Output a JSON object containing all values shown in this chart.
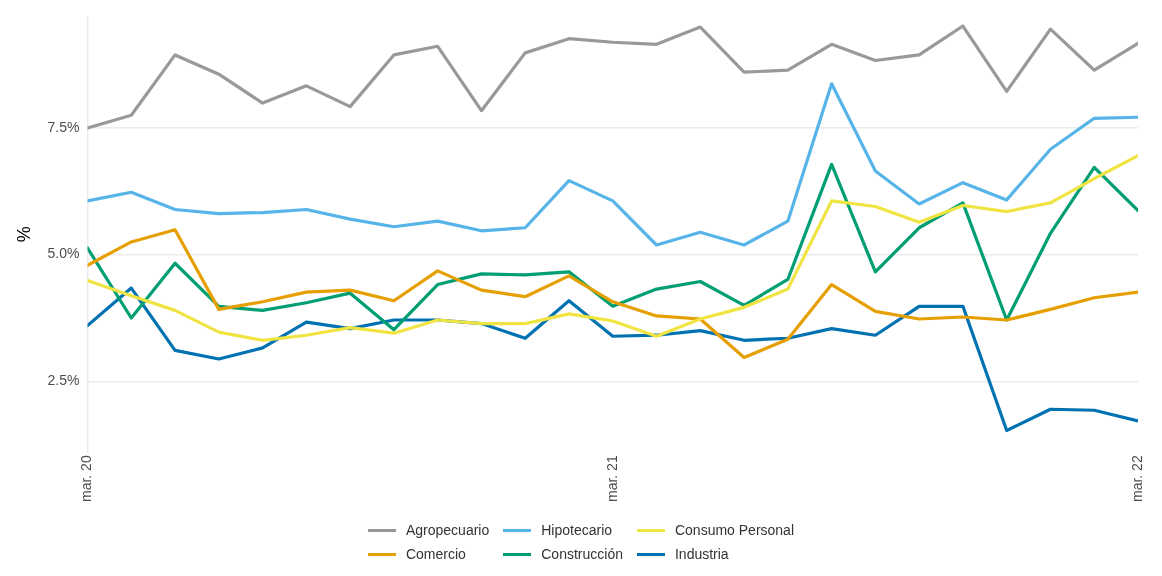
{
  "chart_data": {
    "type": "line",
    "ylabel": "%",
    "x": [
      "2020-03",
      "2020-04",
      "2020-05",
      "2020-06",
      "2020-07",
      "2020-08",
      "2020-09",
      "2020-10",
      "2020-11",
      "2020-12",
      "2021-01",
      "2021-02",
      "2021-03",
      "2021-04",
      "2021-05",
      "2021-06",
      "2021-07",
      "2021-08",
      "2021-09",
      "2021-10",
      "2021-11",
      "2021-12",
      "2022-01",
      "2022-02",
      "2022-03"
    ],
    "xlim": [
      "2020-03",
      "2022-03"
    ],
    "xticks": [
      {
        "value": "2020-03",
        "label": "mar. 20"
      },
      {
        "value": "2021-03",
        "label": "mar. 21"
      },
      {
        "value": "2022-03",
        "label": "mar. 22"
      }
    ],
    "ylim": [
      1.1,
      9.7
    ],
    "yticks": [
      {
        "value": 2.5,
        "label": "2.5%"
      },
      {
        "value": 5.0,
        "label": "5.0%"
      },
      {
        "value": 7.5,
        "label": "7.5%"
      }
    ],
    "grid": "y",
    "legend": "bottom",
    "marker": "none",
    "line_style": "solid",
    "series": [
      {
        "name": "Agropecuario",
        "color": "#999999",
        "values": [
          7.5,
          7.75,
          8.94,
          8.56,
          7.99,
          8.33,
          7.92,
          8.94,
          9.11,
          7.84,
          8.98,
          9.26,
          9.19,
          9.15,
          9.49,
          8.6,
          8.64,
          9.15,
          8.83,
          8.94,
          9.51,
          8.22,
          9.45,
          8.64,
          9.17
        ]
      },
      {
        "name": "Hipotecario",
        "color": "#56b4e9",
        "values": [
          6.06,
          6.23,
          5.89,
          5.81,
          5.83,
          5.89,
          5.7,
          5.55,
          5.66,
          5.47,
          5.53,
          6.46,
          6.06,
          5.19,
          5.44,
          5.19,
          5.66,
          8.37,
          6.65,
          6.0,
          6.42,
          6.08,
          7.08,
          7.69,
          7.71
        ]
      },
      {
        "name": "Consumo Personal",
        "color": "#f0e442",
        "values": [
          4.49,
          4.19,
          3.9,
          3.47,
          3.31,
          3.41,
          3.56,
          3.45,
          3.71,
          3.64,
          3.64,
          3.83,
          3.69,
          3.39,
          3.73,
          3.96,
          4.32,
          6.06,
          5.95,
          5.64,
          5.97,
          5.85,
          6.02,
          6.5,
          6.95
        ]
      },
      {
        "name": "Comercio",
        "color": "#e69f00",
        "values": [
          4.79,
          5.25,
          5.49,
          3.92,
          4.07,
          4.26,
          4.3,
          4.09,
          4.68,
          4.3,
          4.17,
          4.58,
          4.07,
          3.79,
          3.73,
          2.97,
          3.33,
          4.41,
          3.88,
          3.73,
          3.77,
          3.71,
          3.92,
          4.15,
          4.26
        ]
      },
      {
        "name": "Construcción",
        "color": "#009e73",
        "values": [
          5.13,
          3.75,
          4.83,
          3.98,
          3.9,
          4.05,
          4.24,
          3.52,
          4.41,
          4.62,
          4.6,
          4.66,
          3.98,
          4.32,
          4.47,
          4.0,
          4.51,
          6.78,
          4.66,
          5.53,
          6.02,
          3.71,
          5.42,
          6.72,
          5.87
        ]
      },
      {
        "name": "Industria",
        "color": "#0072b2",
        "values": [
          3.6,
          4.34,
          3.11,
          2.94,
          3.16,
          3.67,
          3.54,
          3.71,
          3.71,
          3.64,
          3.35,
          4.09,
          3.39,
          3.41,
          3.5,
          3.31,
          3.35,
          3.54,
          3.41,
          3.98,
          3.98,
          1.53,
          1.95,
          1.93,
          1.72
        ]
      }
    ]
  }
}
